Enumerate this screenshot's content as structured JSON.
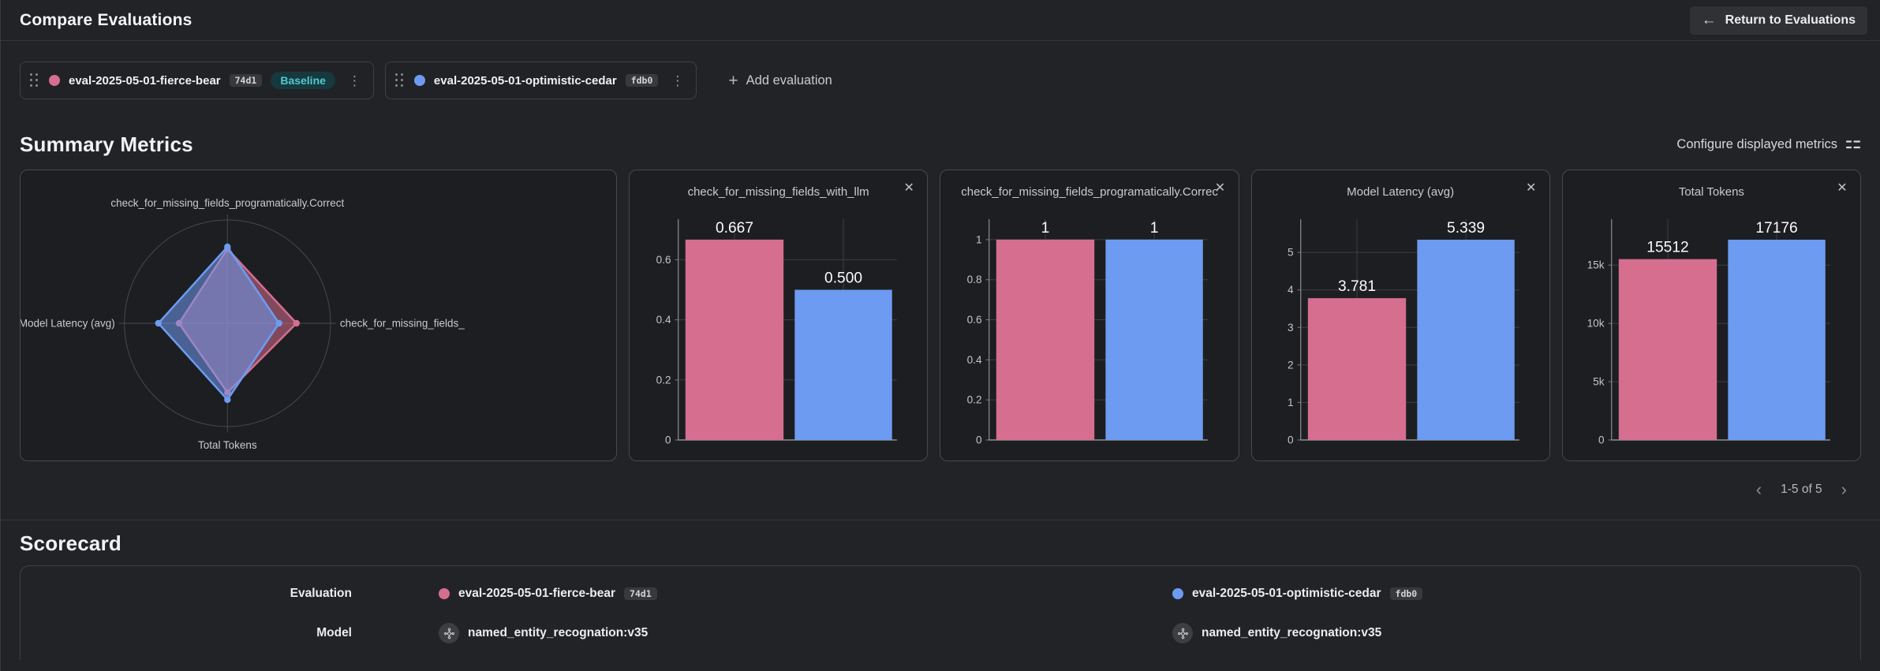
{
  "colors": {
    "pink": "#d56e8f",
    "blue": "#6d9bf2",
    "grid": "#3d3f43",
    "axis": "#7c7e82"
  },
  "header": {
    "title": "Compare Evaluations",
    "return_button": "Return to Evaluations"
  },
  "evaluation_bar": {
    "add_button": "Add evaluation",
    "evaluations": [
      {
        "name": "eval-2025-05-01-fierce-bear",
        "hash": "74d1",
        "badge": "Baseline",
        "color": "pink"
      },
      {
        "name": "eval-2025-05-01-optimistic-cedar",
        "hash": "fdb0",
        "color": "blue"
      }
    ]
  },
  "summary_metrics": {
    "title": "Summary Metrics",
    "configure_label": "Configure displayed metrics",
    "pagination": {
      "range": "1-5 of 5",
      "prev": "‹",
      "next": "›"
    }
  },
  "chart_data": [
    {
      "type": "radar",
      "axes": [
        {
          "position": "top",
          "label": "check_for_missing_fields_programatically.Correct"
        },
        {
          "position": "right",
          "label": "check_for_missing_fields_"
        },
        {
          "position": "bottom",
          "label": "Total Tokens"
        },
        {
          "position": "left",
          "label": "Model Latency (avg)"
        }
      ],
      "series": [
        {
          "name": "eval-2025-05-01-fierce-bear",
          "color": "pink",
          "values_normalized": [
            0.72,
            0.67,
            0.67,
            0.47
          ]
        },
        {
          "name": "eval-2025-05-01-optimistic-cedar",
          "color": "blue",
          "values_normalized": [
            0.74,
            0.5,
            0.74,
            0.67
          ]
        }
      ]
    },
    {
      "type": "bar",
      "title": "check_for_missing_fields_with_llm",
      "categories": [
        "eval-2025-05-01-fierce-bear",
        "eval-2025-05-01-optimistic-cedar"
      ],
      "series": [
        {
          "name": "eval-2025-05-01-fierce-bear",
          "color": "pink",
          "value": 0.667,
          "label": "0.667"
        },
        {
          "name": "eval-2025-05-01-optimistic-cedar",
          "color": "blue",
          "value": 0.5,
          "label": "0.500"
        }
      ],
      "yticks": [
        0,
        0.2,
        0.4,
        0.6
      ],
      "ytick_labels": [
        "0",
        "0.2",
        "0.4",
        "0.6"
      ],
      "ymax": 0.735
    },
    {
      "type": "bar",
      "title": "check_for_missing_fields_programatically.Correct",
      "categories": [
        "eval-2025-05-01-fierce-bear",
        "eval-2025-05-01-optimistic-cedar"
      ],
      "series": [
        {
          "name": "eval-2025-05-01-fierce-bear",
          "color": "pink",
          "value": 1,
          "label": "1"
        },
        {
          "name": "eval-2025-05-01-optimistic-cedar",
          "color": "blue",
          "value": 1,
          "label": "1"
        }
      ],
      "yticks": [
        0,
        0.2,
        0.4,
        0.6,
        0.8,
        1
      ],
      "ytick_labels": [
        "0",
        "0.2",
        "0.4",
        "0.6",
        "0.8",
        "1"
      ],
      "ymax": 1.102
    },
    {
      "type": "bar",
      "title": "Model Latency (avg)",
      "categories": [
        "eval-2025-05-01-fierce-bear",
        "eval-2025-05-01-optimistic-cedar"
      ],
      "series": [
        {
          "name": "eval-2025-05-01-fierce-bear",
          "color": "pink",
          "value": 3.781,
          "label": "3.781"
        },
        {
          "name": "eval-2025-05-01-optimistic-cedar",
          "color": "blue",
          "value": 5.339,
          "label": "5.339"
        }
      ],
      "yticks": [
        0,
        1,
        2,
        3,
        4,
        5
      ],
      "ytick_labels": [
        "0",
        "1",
        "2",
        "3",
        "4",
        "5"
      ],
      "ymax": 5.886
    },
    {
      "type": "bar",
      "title": "Total Tokens",
      "categories": [
        "eval-2025-05-01-fierce-bear",
        "eval-2025-05-01-optimistic-cedar"
      ],
      "series": [
        {
          "name": "eval-2025-05-01-fierce-bear",
          "color": "pink",
          "value": 15512,
          "label": "15512"
        },
        {
          "name": "eval-2025-05-01-optimistic-cedar",
          "color": "blue",
          "value": 17176,
          "label": "17176"
        }
      ],
      "yticks": [
        0,
        5000,
        10000,
        15000
      ],
      "ytick_labels": [
        "0",
        "5k",
        "10k",
        "15k"
      ],
      "ymax": 18936
    }
  ],
  "scorecard": {
    "title": "Scorecard",
    "evaluation_label": "Evaluation",
    "model_label": "Model",
    "models": [
      "named_entity_recognation:v35",
      "named_entity_recognation:v35"
    ]
  }
}
